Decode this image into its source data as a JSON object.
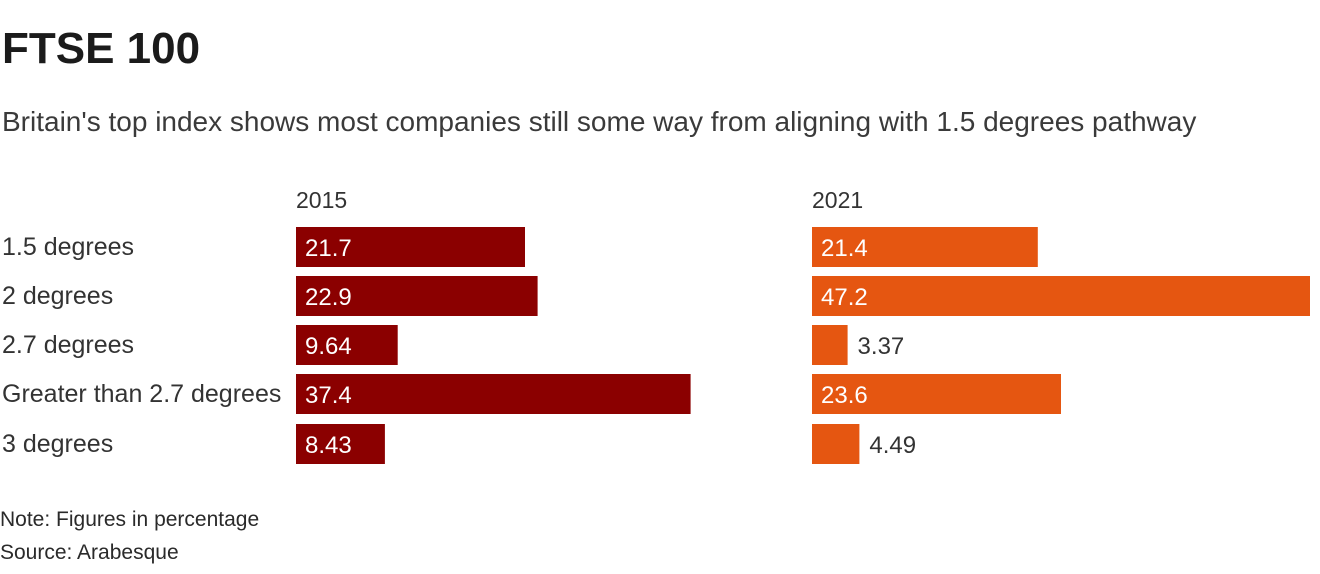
{
  "title": "FTSE 100",
  "subtitle": "Britain's top index shows most companies still some way from aligning with 1.5 degrees pathway",
  "note": "Note: Figures in percentage",
  "source": "Source: Arabesque",
  "colors": {
    "series_2015": "#8b0000",
    "series_2021": "#e55611",
    "label_inside": "#ffffff",
    "label_outside": "#333333"
  },
  "chart_data": {
    "type": "bar",
    "orientation": "horizontal",
    "layout": "small-multiples",
    "categories": [
      "1.5 degrees",
      "2 degrees",
      "2.7 degrees",
      "Greater than 2.7 degrees",
      "3 degrees"
    ],
    "series": [
      {
        "name": "2015",
        "values": [
          21.7,
          22.9,
          9.64,
          37.4,
          8.43
        ]
      },
      {
        "name": "2021",
        "values": [
          21.4,
          47.2,
          3.37,
          23.6,
          4.49
        ]
      }
    ],
    "xlim": [
      0,
      47.2
    ],
    "grid": false,
    "legend": "none"
  }
}
